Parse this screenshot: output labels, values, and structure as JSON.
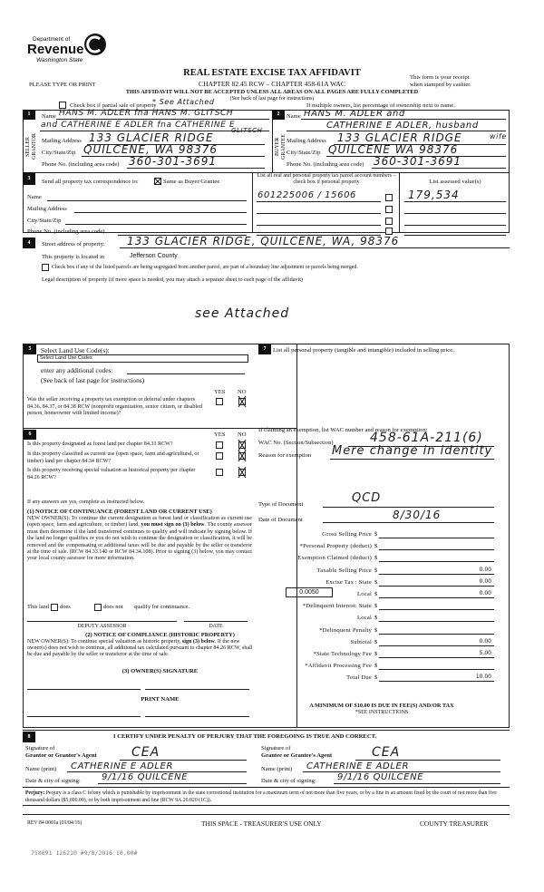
{
  "header": {
    "logo": {
      "line1": "Department of",
      "line2": "Revenue",
      "line3": "Washington State"
    },
    "title": "REAL ESTATE EXCISE TAX AFFIDAVIT",
    "chapter": "CHAPTER 82.45 RCW – CHAPTER 458-61A WAC",
    "please": "PLEASE TYPE OR PRINT",
    "receipt1": "This form is your receipt",
    "receipt2": "when stamped by cashier.",
    "warning": "THIS AFFIDAVIT WILL NOT BE ACCEPTED UNLESS ALL AREAS ON ALL PAGES ARE FULLY COMPLETED",
    "see_back": "(See back of last page for instructions)",
    "partial_label": "Check box if partial sale of property",
    "partial_note": "* See Attached",
    "multiple_owners": "If multiple owners, list percentage of ownership next to name."
  },
  "seller": {
    "num": "1",
    "side_label": "SELLER GRANTOR",
    "name_label": "Name",
    "name1": "HANS M. ADLER fna HANS M. GLITSCH",
    "name2": "and CATHERINE E ADLER fna CATHERINE E",
    "name3": "GLITSCH",
    "address_label": "Mailing Address",
    "address": "133 GLACIER RIDGE",
    "city_label": "City/State/Zip",
    "city": "QUILCENE, WA 98376",
    "phone_label": "Phone No. (including area code)",
    "phone": "360-301-3691"
  },
  "buyer": {
    "num": "2",
    "side_label": "BUYER GRANTEE",
    "name_label": "Name",
    "name1": "HANS M. ADLER and",
    "name2": "CATHERINE E ADLER, husband",
    "name3": "wife",
    "address_label": "Mailing Address",
    "address": "133 GLACIER RIDGE",
    "city_label": "City/State/Zip",
    "city": "QUILCENE WA 98376",
    "phone_label": "Phone No. (including area code)",
    "phone": "360-301-3691"
  },
  "section3": {
    "num": "3",
    "send_label": "Send all property tax correspondence to:",
    "same_label": "Same as Buyer/Grantee",
    "same_checked": true,
    "name_label": "Name",
    "address_label": "Mailing Address",
    "city_label": "City/State/Zip",
    "phone_label": "Phone No. (including area code)",
    "parcel_header": "List all real and personal property tax parcel account numbers – check box if personal property",
    "value_header": "List assessed value(s)",
    "parcels": [
      {
        "number": "601225006 / 15606",
        "value": "179,534"
      },
      {
        "number": "",
        "value": ""
      },
      {
        "number": "",
        "value": ""
      },
      {
        "number": "",
        "value": ""
      }
    ]
  },
  "section4": {
    "num": "4",
    "street_label": "Street address of property:",
    "street": "133 GLACIER RIDGE, QUILCENE, WA, 98376",
    "county_label": "This property is located in",
    "county": "Jefferson County",
    "segregated_label": "Check box if any of the listed parcels are being segregated from another parcel, are part of a boundary line adjustment or parcels being merged.",
    "legal_label": "Legal description of property (if more space is needed, you may attach a separate sheet to each page of the affidavit)",
    "legal": "see Attached"
  },
  "section5": {
    "num": "5",
    "land_use_label": "Select Land Use Code(s):",
    "land_use_select": "Select Land Use Codes",
    "additional_label": "enter any additional codes:",
    "see_back": "(See back of last page for instructions)",
    "yes": "YES",
    "no": "NO",
    "q1": "Was the seller receiving a property tax exemption or deferral under chapters 84.36, 84.37, or 84.38 RCW (nonprofit organization, senior citizen, or disabled person, homeowner with limited income)?",
    "q1_answer": "NO"
  },
  "section6": {
    "num": "6",
    "yes": "YES",
    "no": "NO",
    "questions": [
      {
        "text": "Is this property designated as forest land per chapter 84.33 RCW?",
        "answer": "NO"
      },
      {
        "text": "Is this property classified as current use (open space, farm and agricultural, or timber) land per chapter 84.34 RCW?",
        "answer": "NO"
      },
      {
        "text": "Is this property receiving special valuation as historical property per chapter 84.26 RCW?",
        "answer": "NO"
      }
    ],
    "if_yes": "If any answers are yes, complete as instructed below.",
    "notice1_title": "(1) NOTICE OF CONTINUANCE  (FOREST LAND OR CURRENT USE)",
    "notice1_a": "NEW OWNER(S): To continue the current designation as forest land or classification as current use (open space, farm and agriculture, or timber) land,",
    "notice1_bold": "you must sign on (3) below",
    "notice1_b": ". The county assessor must then determine if the land transferred continues to qualify and will indicate by signing below. If the land no longer qualifies or you do not wish to continue the designation or classification, it will be removed and the compensating or additional taxes will be due and payable by the seller or transferor at the time of sale. (RCW 84.33.140 or RCW 84.34.108). Prior to signing (3) below, you may contact your local county assessor for more information.",
    "this_land": "This land",
    "does": "does",
    "does_not": "does not",
    "qualify": "qualify for continuance.",
    "deputy": "DEPUTY ASSESSOR",
    "date": "DATE",
    "notice2_title": "(2) NOTICE OF COMPLIANCE (HISTORIC PROPERTY)",
    "notice2_a": "NEW OWNER(S): To continue special valuation as historic property,",
    "notice2_bold": "sign (3) below",
    "notice2_b": ". If the new owner(s) does not wish to continue, all additional tax calculated pursuant to chapter 84.26 RCW, shall be due and payable by the seller or transferor at the time of sale.",
    "owner_sig": "(3)  OWNER(S) SIGNATURE",
    "print_name": "PRINT NAME"
  },
  "section7": {
    "num": "7",
    "label": "List all  personal property (tangible and intangible) included in selling price.",
    "exemption_intro": "If claiming an exemption, list WAC number and reason for exemption:",
    "wac_label": "WAC No. (Section/Subsection)",
    "wac": "458-61A-211(6)",
    "reason_label": "Reason for exemption",
    "reason": "Mere change in identity",
    "doc_type_label": "Type of Document",
    "doc_type": "QCD",
    "doc_date_label": "Date of Document",
    "doc_date": "8/30/16",
    "rate": "0.0050",
    "fees": [
      {
        "label": "Gross Selling Price",
        "value": ""
      },
      {
        "label": "*Personal Property (deduct)",
        "value": ""
      },
      {
        "label": "Exemption Claimed (deduct)",
        "value": ""
      },
      {
        "label": "Taxable Selling Price",
        "value": "0.00"
      },
      {
        "label": "Excise Tax : State",
        "value": "0.00"
      },
      {
        "label": "Local",
        "value": "0.00"
      },
      {
        "label": "*Delinquent Interest: State",
        "value": ""
      },
      {
        "label": "Local",
        "value": ""
      },
      {
        "label": "*Delinquent Penalty",
        "value": ""
      },
      {
        "label": "Subtotal",
        "value": "0.00"
      },
      {
        "label": "*State Technology Fee",
        "value": "5.00"
      },
      {
        "label": "*Affidavit Processing Fee",
        "value": ""
      },
      {
        "label": "Total Due",
        "value": "10.00"
      }
    ],
    "currency": "$",
    "minimum": "A MINIMUM OF $10.00 IS DUE IN FEE(S) AND/OR TAX",
    "see_instr": "*SEE INSTRUCTIONS"
  },
  "section8": {
    "num": "8",
    "certify": "I CERTIFY UNDER PENALTY OF PERJURY THAT THE FOREGOING IS TRUE AND CORRECT.",
    "sig_of": "Signature of",
    "grantor_label": "Grantor or Grantor's Agent",
    "grantee_label": "Grantee or Grantee's Agent",
    "grantor_sig": "CEA",
    "grantee_sig": "CEA",
    "name_label": "Name (print)",
    "grantor_name": "CATHERINE E ADLER",
    "grantee_name": "CATHERINE E ADLER",
    "date_label": "Date & city of signing:",
    "grantor_date": "9/1/16  QUILCENE",
    "grantee_date": "9/1/16  QUILCENE",
    "perjury_bold": "Perjury:",
    "perjury": " Perjury is a class C felony which is punishable by imprisonment in the state correctional institution for a maximum term of not more than five years, or by a fine in an amount fixed by the court of not more than five thousand dollars ($5,000.00), or by both imprisonment and fine (RCW 9A.20.020 (1C))."
  },
  "footer": {
    "rev": "REV 84 0001a (01/04/16)",
    "treasurer_use": "THIS SPACE - TREASURER'S USE ONLY",
    "county_treasurer": "COUNTY TREASURER",
    "stamp": "758091 126210 #9/8/2016 10.00#"
  }
}
